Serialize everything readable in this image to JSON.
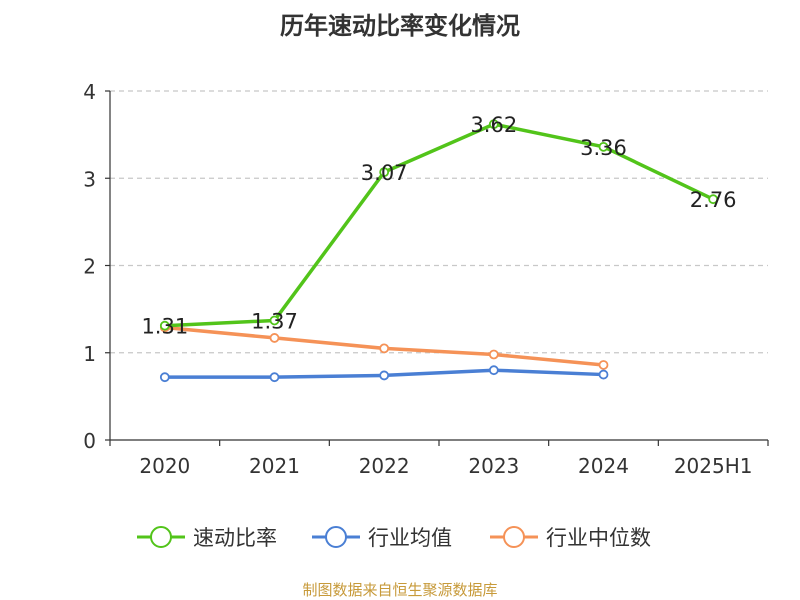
{
  "chart_data": {
    "type": "line",
    "title": "历年速动比率变化情况",
    "categories": [
      "2020",
      "2021",
      "2022",
      "2023",
      "2024",
      "2025H1"
    ],
    "ylim": [
      0,
      4
    ],
    "yticks": [
      0,
      1,
      2,
      3,
      4
    ],
    "grid": true,
    "legend_position": "bottom",
    "series": [
      {
        "name": "速动比率",
        "color": "#52c41a",
        "values": [
          1.31,
          1.37,
          3.07,
          3.62,
          3.36,
          2.76
        ],
        "labels": [
          "1.31",
          "1.37",
          "3.07",
          "3.62",
          "3.36",
          "2.76"
        ]
      },
      {
        "name": "行业均值",
        "color": "#4a7fd4",
        "values": [
          0.72,
          0.72,
          0.74,
          0.8,
          0.75,
          null
        ]
      },
      {
        "name": "行业中位数",
        "color": "#f59257",
        "values": [
          1.29,
          1.17,
          1.05,
          0.98,
          0.86,
          null
        ]
      }
    ]
  },
  "source": "制图数据来自恒生聚源数据库"
}
